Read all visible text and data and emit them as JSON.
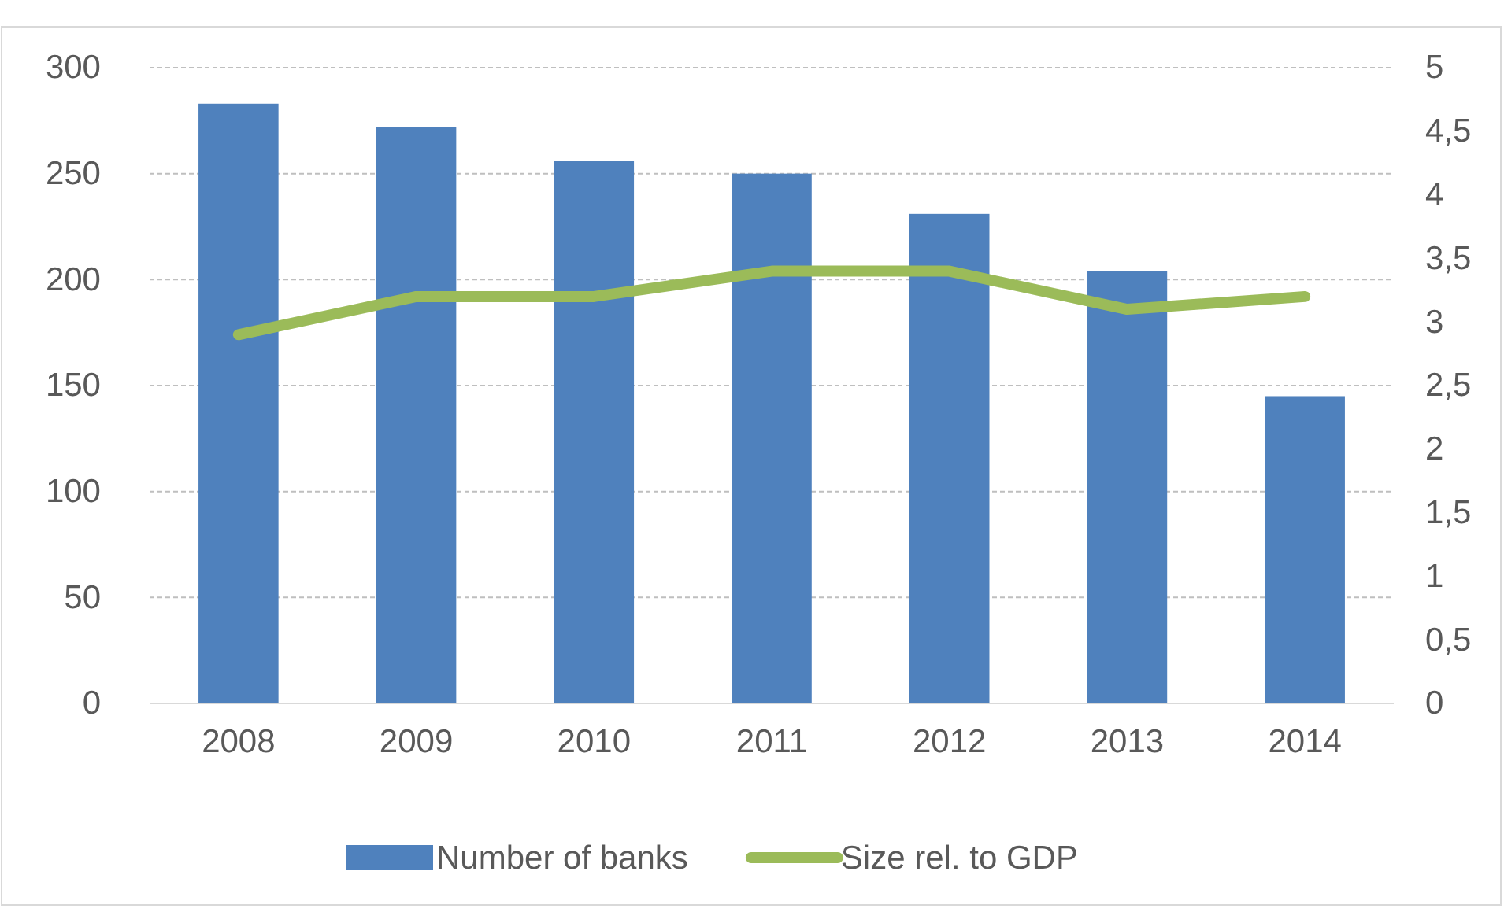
{
  "chart_data": {
    "type": "bar",
    "categories": [
      "2008",
      "2009",
      "2010",
      "2011",
      "2012",
      "2013",
      "2014"
    ],
    "series": [
      {
        "name": "Number of banks",
        "color": "#4f81bd",
        "values": [
          283,
          272,
          256,
          250,
          231,
          204,
          145
        ]
      },
      {
        "name": "Size rel. to GDP",
        "type": "line",
        "axis": "y2",
        "color": "#9bbb59",
        "values": [
          2.9,
          3.2,
          3.2,
          3.4,
          3.4,
          3.1,
          3.2
        ]
      }
    ],
    "ylim": [
      0,
      300
    ],
    "yticks": [
      0,
      50,
      100,
      150,
      200,
      250,
      300
    ],
    "y2lim": [
      0,
      5
    ],
    "y2ticks": [
      0,
      {
        "value": 0.5,
        "label": "0,5"
      },
      1,
      {
        "value": 1.5,
        "label": "1,5"
      },
      2,
      {
        "value": 2.5,
        "label": "2,5"
      },
      3,
      {
        "value": 3.5,
        "label": "3,5"
      },
      4,
      {
        "value": 4.5,
        "label": "4,5"
      },
      5
    ],
    "grid": "y",
    "legend": "bottom",
    "marker": "none",
    "line_style": "solid"
  }
}
